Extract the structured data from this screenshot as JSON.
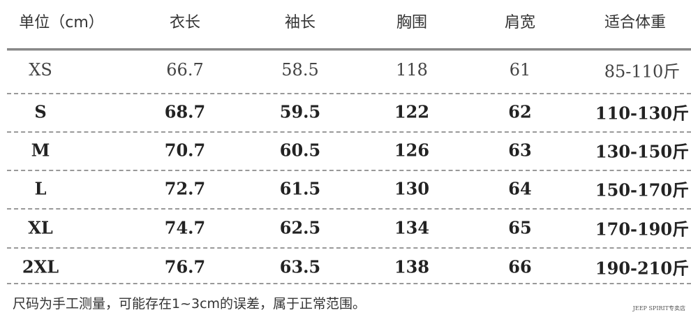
{
  "headers": [
    "单位（cm）",
    "衣长",
    "袖长",
    "胸围",
    "肩宽",
    "适合体重"
  ],
  "rows": [
    [
      "XS",
      "66.7",
      "58.5",
      "118",
      "61",
      "85-110斤"
    ],
    [
      "S",
      "68.7",
      "59.5",
      "122",
      "62",
      "110-130斤"
    ],
    [
      "M",
      "70.7",
      "60.5",
      "126",
      "63",
      "130-150斤"
    ],
    [
      "L",
      "72.7",
      "61.5",
      "130",
      "64",
      "150-170斤"
    ],
    [
      "XL",
      "74.7",
      "62.5",
      "134",
      "65",
      "170-190斤"
    ],
    [
      "2XL",
      "76.7",
      "63.5",
      "138",
      "66",
      "190-210斤"
    ]
  ],
  "note": "尺码为手工测量，可能存在1~3cm的误差，属于正常范围。",
  "watermark": "JEEP SPIRIT专卖店"
}
